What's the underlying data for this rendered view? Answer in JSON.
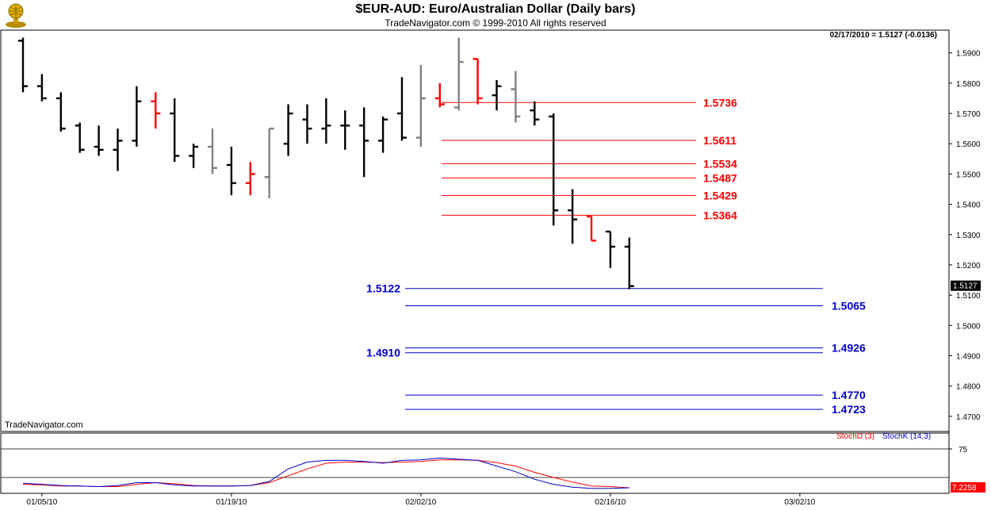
{
  "header": {
    "title": "$EUR-AUD:  Euro/Australian Dollar  (Daily bars)",
    "subtitle": "TradeNavigator.com © 1999-2010 All rights reserved",
    "quote": "02/17/2010 = 1.5127 (-0.0136)",
    "watermark": "TradeNavigator.com",
    "logo_icon": "globe-trophy-icon"
  },
  "chart_data": [
    {
      "type": "ohlc",
      "title": "$EUR-AUD:  Euro/Australian Dollar  (Daily bars)",
      "ylim": [
        1.465,
        1.5975
      ],
      "y_ticks": [
        1.47,
        1.48,
        1.49,
        1.5,
        1.51,
        1.52,
        1.53,
        1.54,
        1.55,
        1.56,
        1.57,
        1.58,
        1.59
      ],
      "y_tick_labels": [
        "1.4700",
        "1.4800",
        "1.4900",
        "1.5000",
        "1.5100",
        "1.5200",
        "1.5300",
        "1.5400",
        "1.5500",
        "1.5600",
        "1.5700",
        "1.5800",
        "1.5900"
      ],
      "x_tick_labels": [
        "01/05/10",
        "01/19/10",
        "02/02/10",
        "02/16/10",
        "03/02/10"
      ],
      "x_tick_index": [
        1,
        11,
        21,
        31,
        41
      ],
      "last_price_label": "1.5127",
      "colors": {
        "normal": "#000000",
        "grey": "#808080",
        "red": "#ff0000",
        "resistance": "#ff0000",
        "support": "#0000cc"
      },
      "bars": [
        {
          "o": 1.594,
          "h": 1.595,
          "l": 1.577,
          "c": 1.579,
          "col": "normal"
        },
        {
          "o": 1.579,
          "h": 1.583,
          "l": 1.574,
          "c": 1.575,
          "col": "normal"
        },
        {
          "o": 1.575,
          "h": 1.577,
          "l": 1.564,
          "c": 1.565,
          "col": "normal"
        },
        {
          "o": 1.566,
          "h": 1.567,
          "l": 1.557,
          "c": 1.558,
          "col": "normal"
        },
        {
          "o": 1.559,
          "h": 1.566,
          "l": 1.556,
          "c": 1.558,
          "col": "normal"
        },
        {
          "o": 1.558,
          "h": 1.565,
          "l": 1.551,
          "c": 1.561,
          "col": "normal"
        },
        {
          "o": 1.561,
          "h": 1.579,
          "l": 1.559,
          "c": 1.574,
          "col": "normal"
        },
        {
          "o": 1.574,
          "h": 1.577,
          "l": 1.565,
          "c": 1.57,
          "col": "red"
        },
        {
          "o": 1.57,
          "h": 1.575,
          "l": 1.554,
          "c": 1.556,
          "col": "normal"
        },
        {
          "o": 1.556,
          "h": 1.56,
          "l": 1.552,
          "c": 1.559,
          "col": "normal"
        },
        {
          "o": 1.559,
          "h": 1.565,
          "l": 1.55,
          "c": 1.552,
          "col": "grey"
        },
        {
          "o": 1.553,
          "h": 1.559,
          "l": 1.543,
          "c": 1.547,
          "col": "normal"
        },
        {
          "o": 1.547,
          "h": 1.554,
          "l": 1.543,
          "c": 1.55,
          "col": "red"
        },
        {
          "o": 1.549,
          "h": 1.565,
          "l": 1.542,
          "c": 1.565,
          "col": "grey"
        },
        {
          "o": 1.56,
          "h": 1.573,
          "l": 1.556,
          "c": 1.57,
          "col": "normal"
        },
        {
          "o": 1.568,
          "h": 1.573,
          "l": 1.56,
          "c": 1.565,
          "col": "normal"
        },
        {
          "o": 1.565,
          "h": 1.575,
          "l": 1.56,
          "c": 1.566,
          "col": "normal"
        },
        {
          "o": 1.566,
          "h": 1.571,
          "l": 1.558,
          "c": 1.566,
          "col": "normal"
        },
        {
          "o": 1.566,
          "h": 1.572,
          "l": 1.549,
          "c": 1.561,
          "col": "normal"
        },
        {
          "o": 1.561,
          "h": 1.569,
          "l": 1.557,
          "c": 1.568,
          "col": "normal"
        },
        {
          "o": 1.57,
          "h": 1.582,
          "l": 1.561,
          "c": 1.562,
          "col": "normal"
        },
        {
          "o": 1.562,
          "h": 1.586,
          "l": 1.559,
          "c": 1.575,
          "col": "grey"
        },
        {
          "o": 1.575,
          "h": 1.58,
          "l": 1.572,
          "c": 1.573,
          "col": "red"
        },
        {
          "o": 1.572,
          "h": 1.595,
          "l": 1.571,
          "c": 1.587,
          "col": "grey"
        },
        {
          "o": 1.588,
          "h": 1.588,
          "l": 1.573,
          "c": 1.575,
          "col": "red"
        },
        {
          "o": 1.576,
          "h": 1.581,
          "l": 1.571,
          "c": 1.579,
          "col": "normal"
        },
        {
          "o": 1.578,
          "h": 1.584,
          "l": 1.567,
          "c": 1.569,
          "col": "grey"
        },
        {
          "o": 1.571,
          "h": 1.574,
          "l": 1.566,
          "c": 1.568,
          "col": "normal"
        },
        {
          "o": 1.569,
          "h": 1.57,
          "l": 1.533,
          "c": 1.538,
          "col": "normal"
        },
        {
          "o": 1.538,
          "h": 1.545,
          "l": 1.527,
          "c": 1.535,
          "col": "normal"
        },
        {
          "o": 1.536,
          "h": 1.536,
          "l": 1.528,
          "c": 1.528,
          "col": "red"
        },
        {
          "o": 1.531,
          "h": 1.531,
          "l": 1.519,
          "c": 1.526,
          "col": "normal"
        },
        {
          "o": 1.526,
          "h": 1.529,
          "l": 1.512,
          "c": 1.513,
          "col": "normal"
        }
      ],
      "resistance_levels": [
        {
          "value": 1.5736,
          "label": "1.5736"
        },
        {
          "value": 1.5611,
          "label": "1.5611"
        },
        {
          "value": 1.5534,
          "label": "1.5534"
        },
        {
          "value": 1.5487,
          "label": "1.5487"
        },
        {
          "value": 1.5429,
          "label": "1.5429"
        },
        {
          "value": 1.5364,
          "label": "1.5364"
        }
      ],
      "support_levels": [
        {
          "value": 1.5122,
          "label": "1.5122",
          "side": "left"
        },
        {
          "value": 1.5065,
          "label": "1.5065",
          "side": "right"
        },
        {
          "value": 1.4926,
          "label": "1.4926",
          "side": "right"
        },
        {
          "value": 1.491,
          "label": "1.4910",
          "side": "left"
        },
        {
          "value": 1.477,
          "label": "1.4770",
          "side": "right"
        },
        {
          "value": 1.4723,
          "label": "1.4723",
          "side": "right"
        }
      ]
    },
    {
      "type": "line",
      "ylim": [
        0,
        100
      ],
      "y_tick_labels": [
        "75"
      ],
      "y_ticks": [
        75
      ],
      "reference_line": 75,
      "last_value_label": "7.2258",
      "series": [
        {
          "name": "StochD (3)",
          "color": "#ff0000",
          "values": [
            13,
            12,
            10,
            10,
            9,
            9,
            13,
            16,
            14,
            11,
            10,
            10,
            11,
            16,
            28,
            40,
            50,
            52,
            52,
            51,
            52,
            53,
            56,
            56,
            55,
            51,
            45,
            34,
            25,
            17,
            10,
            9,
            7
          ]
        },
        {
          "name": "StochK (14,3)",
          "color": "#0000cc",
          "values": [
            15,
            13,
            11,
            10,
            9,
            11,
            16,
            16,
            12,
            10,
            10,
            10,
            11,
            18,
            40,
            52,
            55,
            55,
            53,
            50,
            55,
            56,
            59,
            57,
            55,
            45,
            35,
            22,
            13,
            8,
            6,
            6,
            7
          ]
        }
      ]
    }
  ]
}
